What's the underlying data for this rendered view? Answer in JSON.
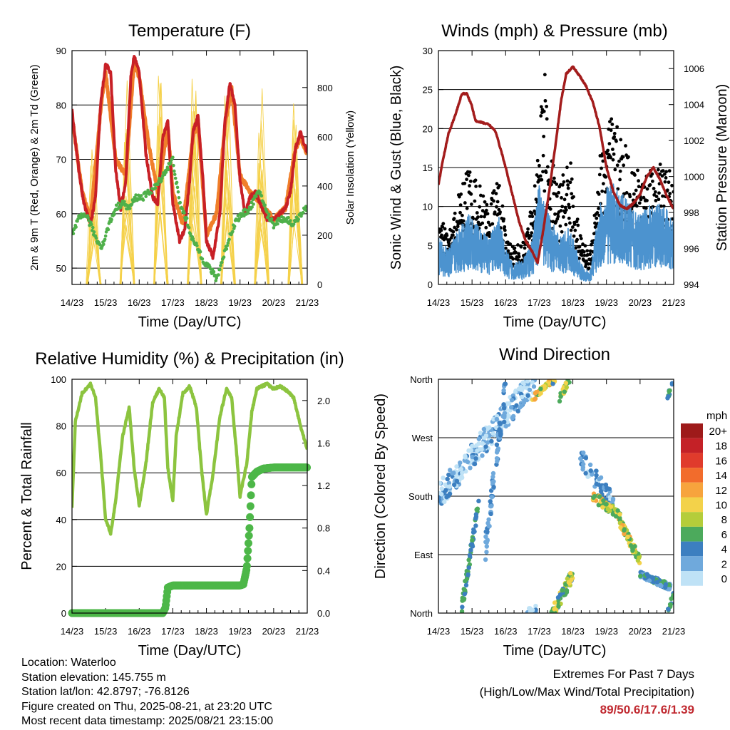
{
  "colors": {
    "temp_red": "#c82026",
    "temp_orange": "#f07f2a",
    "dewpoint_green": "#4fb04a",
    "solar_yellow": "#f5d14a",
    "wind_blue": "#4c93cf",
    "gust_black": "#000000",
    "pressure_maroon": "#a31c1c",
    "rh_lightgreen": "#8cc43f",
    "rain_green": "#4db748",
    "extremes_red": "#c0282f"
  },
  "x_ticks": [
    "14/23",
    "15/23",
    "16/23",
    "17/23",
    "18/23",
    "19/23",
    "20/23",
    "21/23"
  ],
  "chart_data": [
    {
      "type": "line",
      "title": "Temperature (F)",
      "xlabel": "Time (Day/UTC)",
      "ylabel": "2m & 9m T (Red, Orange) & 2m Td (Green)",
      "y2label": "Solar Insolation (Yellow)",
      "ylim": [
        47,
        90
      ],
      "yticks": [
        50,
        60,
        70,
        80,
        90
      ],
      "y2lim": [
        0,
        950
      ],
      "y2ticks": [
        0,
        200,
        400,
        600,
        800
      ],
      "grid": true,
      "series": [
        {
          "role": "2m T",
          "color": "#c82026",
          "x": [
            0,
            0.2,
            0.35,
            0.45,
            0.55,
            0.7,
            0.85,
            1.0,
            1.15,
            1.3,
            1.45,
            1.6,
            1.75,
            1.85,
            2.0,
            2.2,
            2.4,
            2.55,
            2.7,
            2.85,
            3.0,
            3.2,
            3.35,
            3.5,
            3.6,
            3.75,
            3.9,
            4.0,
            4.2,
            4.4,
            4.55,
            4.7,
            4.85,
            5.0,
            5.15,
            5.3,
            5.45,
            5.6,
            5.8,
            6.0,
            6.2,
            6.35,
            6.5,
            6.65,
            6.8,
            6.9,
            7.0
          ],
          "y": [
            79,
            68,
            62,
            60,
            58,
            63,
            80,
            87.5,
            86,
            68,
            61,
            66,
            85,
            89,
            86,
            71,
            63,
            62,
            74,
            77,
            62,
            55,
            57,
            66,
            75,
            78,
            66,
            55,
            52,
            60,
            77,
            84,
            80,
            66,
            60,
            63,
            64,
            62,
            59,
            59,
            60,
            61,
            64,
            72,
            75,
            73,
            71
          ]
        },
        {
          "role": "9m T",
          "color": "#f07f2a",
          "x": [
            0,
            0.3,
            0.55,
            0.85,
            1.0,
            1.3,
            1.6,
            1.85,
            2.0,
            2.3,
            2.55,
            2.85,
            3.0,
            3.3,
            3.6,
            3.75,
            4.0,
            4.3,
            4.55,
            4.75,
            5.0,
            5.3,
            5.6,
            6.0,
            6.35,
            6.65,
            6.8,
            7.0
          ],
          "y": [
            78,
            64,
            59,
            79,
            86,
            70,
            67,
            88,
            85,
            72,
            64,
            76,
            64,
            58,
            74,
            77,
            56,
            60,
            76,
            83,
            67,
            64,
            62,
            59,
            61,
            72,
            74,
            71
          ]
        },
        {
          "role": "2m Td",
          "color": "#4fb04a",
          "x": [
            0,
            0.2,
            0.4,
            0.55,
            0.75,
            0.9,
            1.1,
            1.3,
            1.5,
            1.7,
            1.9,
            2.1,
            2.3,
            2.5,
            2.7,
            2.9,
            3.0,
            3.2,
            3.4,
            3.6,
            3.8,
            3.95,
            4.1,
            4.3,
            4.5,
            4.7,
            4.9,
            5.1,
            5.3,
            5.45,
            5.6,
            5.8,
            6.0,
            6.2,
            6.4,
            6.6,
            6.8,
            7.0
          ],
          "y": [
            56,
            59,
            60,
            58,
            55,
            54,
            58,
            61,
            62,
            61,
            63,
            63,
            64,
            65,
            67,
            69,
            70,
            62,
            59,
            55,
            53,
            51,
            50,
            48,
            52,
            56,
            59,
            60,
            61,
            63,
            64,
            60,
            58,
            59,
            59,
            58,
            60,
            61
          ]
        },
        {
          "role": "solar",
          "axis": "right",
          "color": "#f5d14a",
          "days": [
            0,
            1,
            2,
            3,
            4,
            5,
            6
          ],
          "peaks": [
            700,
            840,
            860,
            910,
            830,
            800,
            820
          ]
        }
      ]
    },
    {
      "type": "line",
      "title": "Winds (mph) & Pressure (mb)",
      "xlabel": "Time (Day/UTC)",
      "ylabel": "Sonic Wind & Gust (Blue, Black)",
      "y2label": "Station Pressure (Maroon)",
      "ylim": [
        0,
        30
      ],
      "yticks": [
        0,
        5,
        10,
        15,
        20,
        25,
        30
      ],
      "y2lim": [
        994,
        1007
      ],
      "y2ticks": [
        994,
        996,
        998,
        1000,
        1002,
        1004,
        1006
      ],
      "grid": true,
      "series": [
        {
          "role": "wind",
          "color": "#4c93cf",
          "x": [
            0,
            0.3,
            0.6,
            0.9,
            1.2,
            1.5,
            1.8,
            2.0,
            2.2,
            2.5,
            2.8,
            3.0,
            3.3,
            3.6,
            3.9,
            4.2,
            4.5,
            4.8,
            5.1,
            5.4,
            5.7,
            6.0,
            6.3,
            6.6,
            7.0
          ],
          "y": [
            4,
            3,
            5,
            6,
            5,
            4,
            6,
            3,
            2,
            2,
            4,
            9,
            6,
            4,
            5,
            2,
            1,
            7,
            9,
            8,
            7,
            6,
            7,
            7,
            6
          ]
        },
        {
          "role": "gust",
          "color": "#000000",
          "x": [
            0,
            0.3,
            0.6,
            0.9,
            1.2,
            1.5,
            1.8,
            2.0,
            2.2,
            2.5,
            2.8,
            3.0,
            3.15,
            3.3,
            3.6,
            3.9,
            4.2,
            4.5,
            4.8,
            5.1,
            5.4,
            5.7,
            6.0,
            6.3,
            6.6,
            7.0
          ],
          "y": [
            7,
            5,
            9,
            12,
            10,
            8,
            11,
            5,
            4,
            4,
            8,
            16,
            22,
            13,
            10,
            13,
            5,
            3,
            13,
            17,
            15,
            13,
            11,
            12,
            12,
            11
          ]
        },
        {
          "role": "pressure",
          "axis": "right",
          "color": "#a31c1c",
          "x": [
            0,
            0.1,
            0.3,
            0.5,
            0.7,
            0.85,
            1.0,
            1.1,
            1.3,
            1.5,
            1.7,
            1.9,
            2.0,
            2.2,
            2.4,
            2.6,
            2.8,
            2.95,
            3.1,
            3.3,
            3.5,
            3.65,
            3.8,
            4.0,
            4.2,
            4.4,
            4.6,
            4.8,
            5.0,
            5.2,
            5.4,
            5.6,
            5.8,
            6.0,
            6.2,
            6.4,
            6.6,
            6.8,
            7.0
          ],
          "y": [
            999.5,
            1000.6,
            1002.4,
            1003.4,
            1004.6,
            1004.6,
            1003.9,
            1003.1,
            1003.0,
            1002.9,
            1002.5,
            1001.2,
            1000.5,
            999.0,
            997.5,
            996.4,
            995.8,
            995.2,
            996.8,
            999.2,
            1002.0,
            1004.2,
            1005.7,
            1006.1,
            1005.6,
            1005.0,
            1004.1,
            1002.7,
            1000.5,
            999.2,
            998.4,
            998.2,
            998.5,
            999.0,
            1000.0,
            1000.5,
            999.8,
            998.9,
            998.2
          ]
        }
      ]
    },
    {
      "type": "line",
      "title": "Relative Humidity (%) & Precipitation (in)",
      "xlabel": "Time (Day/UTC)",
      "ylabel": "Percent & Total Rainfall",
      "ylim": [
        0,
        100
      ],
      "yticks": [
        0,
        20,
        40,
        60,
        80,
        100
      ],
      "y2lim": [
        0,
        2.2
      ],
      "y2ticks": [
        0.0,
        0.4,
        0.8,
        1.2,
        1.6,
        2.0
      ],
      "grid": true,
      "series": [
        {
          "role": "rh",
          "color": "#8cc43f",
          "x": [
            0,
            0.1,
            0.3,
            0.55,
            0.7,
            0.85,
            1.0,
            1.15,
            1.3,
            1.5,
            1.7,
            1.85,
            2.0,
            2.2,
            2.4,
            2.6,
            2.75,
            2.85,
            3.0,
            3.1,
            3.3,
            3.5,
            3.7,
            3.85,
            4.0,
            4.2,
            4.4,
            4.6,
            4.75,
            4.9,
            5.0,
            5.2,
            5.35,
            5.5,
            5.8,
            6.0,
            6.2,
            6.4,
            6.6,
            6.8,
            7.0
          ],
          "y": [
            45,
            82,
            94,
            98,
            92,
            68,
            40,
            34,
            48,
            75,
            88,
            62,
            46,
            64,
            90,
            96,
            92,
            62,
            48,
            76,
            94,
            97,
            88,
            62,
            42,
            60,
            84,
            96,
            92,
            68,
            50,
            64,
            86,
            96,
            98,
            96,
            97,
            95,
            92,
            80,
            70
          ]
        },
        {
          "role": "rain",
          "axis": "right",
          "color": "#4db748",
          "x": [
            0,
            2.7,
            2.78,
            2.85,
            3.0,
            5.0,
            5.1,
            5.2,
            5.28,
            5.35,
            5.5,
            5.7,
            6.0,
            7.0
          ],
          "y": [
            0,
            0,
            0.05,
            0.24,
            0.26,
            0.26,
            0.27,
            0.42,
            0.8,
            1.28,
            1.33,
            1.36,
            1.37,
            1.37
          ]
        }
      ]
    },
    {
      "type": "scatter",
      "title": "Wind Direction",
      "xlabel": "Time (Day/UTC)",
      "ylabel": "Direction (Colored By Speed)",
      "ylim": [
        0,
        360
      ],
      "ycategories": [
        "North",
        "East",
        "South",
        "West",
        "North"
      ],
      "grid": true,
      "colorbar": {
        "unit": "mph",
        "labels": [
          "20+",
          "18",
          "16",
          "14",
          "12",
          "10",
          "8",
          "6",
          "4",
          "2",
          "0"
        ],
        "colors": [
          "#9e1a1a",
          "#c42127",
          "#e03b2c",
          "#f26c2c",
          "#f7a43d",
          "#f3d24a",
          "#b5cd3a",
          "#4caa5c",
          "#3c7fc0",
          "#6fa9dc",
          "#bfe2f6"
        ]
      }
    }
  ],
  "info": {
    "location": "Location: Waterloo",
    "elevation": "Station elevation: 145.755 m",
    "latlon": "Station lat/lon: 42.8797; -76.8126",
    "created": "Figure created on Thu, 2025-08-21, at 23:20 UTC",
    "recent": "Most recent data timestamp: 2025/08/21 23:15:00"
  },
  "extremes": {
    "title": "Extremes For Past 7 Days",
    "subtitle": "(High/Low/Max Wind/Total Precipitation)",
    "values": "89/50.6/17.6/1.39"
  }
}
